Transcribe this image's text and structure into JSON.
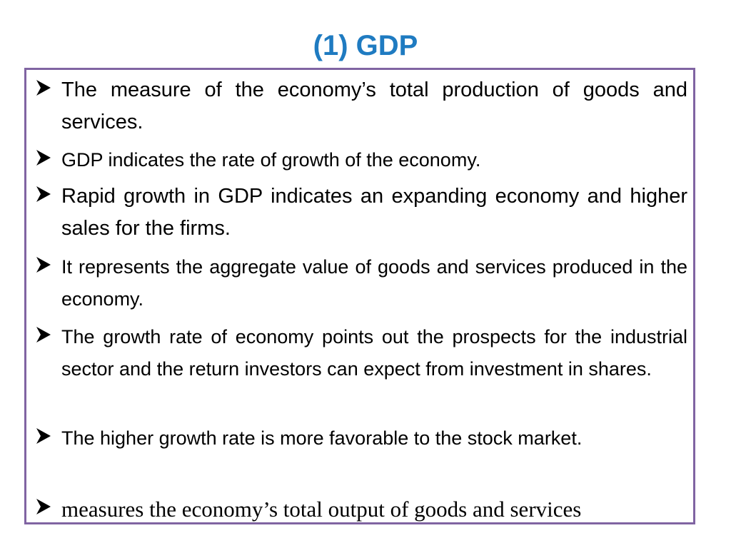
{
  "header": {
    "title": "(1) GDP"
  },
  "bullets": [
    "The measure of the economy’s total production of goods and services.",
    "GDP indicates the rate of growth of the economy.",
    "Rapid growth in GDP indicates an expanding economy and higher sales for the firms.",
    "It represents the aggregate value of goods and services produced in the economy.",
    "The growth rate of economy points out the prospects for the industrial sector and the return investors can expect from investment in shares.",
    "The higher growth rate is more favorable to the stock market.",
    "measures the economy’s total output of goods and services"
  ]
}
